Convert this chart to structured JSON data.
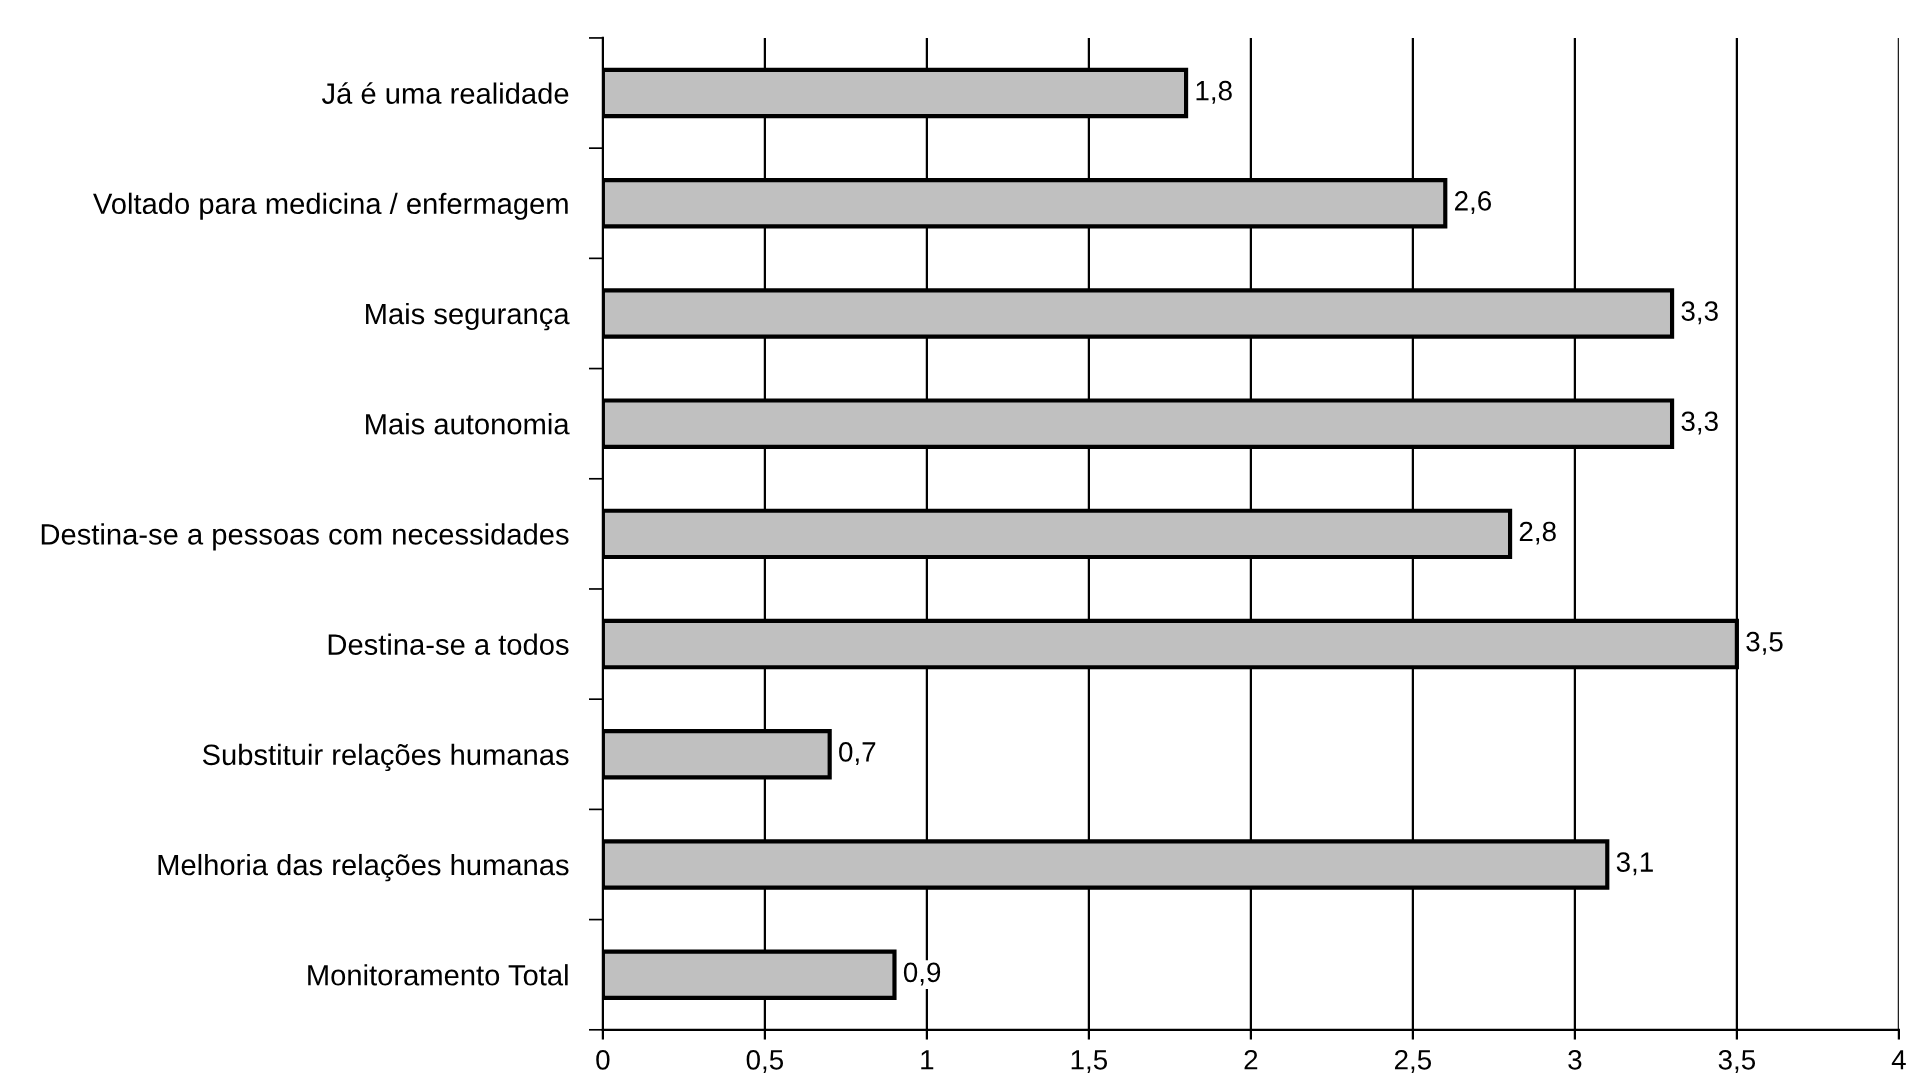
{
  "chart_data": {
    "type": "bar",
    "orientation": "horizontal",
    "categories": [
      "Já é uma realidade",
      "Voltado para medicina / enfermagem",
      "Mais segurança",
      "Mais autonomia",
      "Destina-se a pessoas com necessidades",
      "Destina-se a todos",
      "Substituir relações humanas",
      "Melhoria das relações humanas",
      "Monitoramento Total"
    ],
    "values": [
      1.8,
      2.6,
      3.3,
      3.3,
      2.8,
      3.5,
      0.7,
      3.1,
      0.9
    ],
    "value_labels": [
      "1,8",
      "2,6",
      "3,3",
      "3,3",
      "2,8",
      "3,5",
      "0,7",
      "3,1",
      "0,9"
    ],
    "color": "#c0c0c0",
    "xlim": [
      0,
      4
    ],
    "xticks": [
      0,
      {
        "value": 0.5,
        "label": "0,5"
      },
      1,
      {
        "value": 1.5,
        "label": "1,5"
      },
      2,
      {
        "value": 2.5,
        "label": "2,5"
      },
      3,
      {
        "value": 3.5,
        "label": "3,5"
      },
      4
    ],
    "grid": "x",
    "legend": false
  }
}
